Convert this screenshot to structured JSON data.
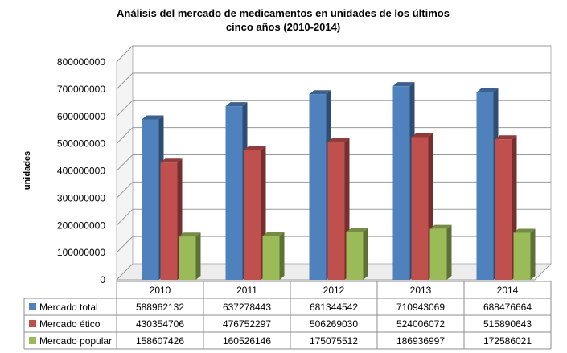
{
  "chart_data": {
    "type": "bar",
    "title_line1": "Análisis  del mercado de medicamentos en unidades de los últimos",
    "title_line2": "cinco años  (2010-2014)",
    "ylabel": "unidades",
    "xlabel": "",
    "ylim": [
      0,
      800000000
    ],
    "y_ticks": [
      "0",
      "100000000",
      "200000000",
      "300000000",
      "400000000",
      "500000000",
      "600000000",
      "700000000",
      "800000000"
    ],
    "grid": true,
    "three_d": true,
    "legend_placement": "data-table-left",
    "categories": [
      "2010",
      "2011",
      "2012",
      "2013",
      "2014"
    ],
    "series": [
      {
        "name": "Mercado total",
        "color": "#4F81BD",
        "values": [
          588962132,
          637278443,
          681344542,
          710943069,
          688476664
        ],
        "labels": [
          "588962132",
          "637278443",
          "681344542",
          "710943069",
          "688476664"
        ]
      },
      {
        "name": "Mercado ético",
        "color": "#C0504D",
        "values": [
          430354706,
          476752297,
          506269030,
          524006072,
          515890643
        ],
        "labels": [
          "430354706",
          "476752297",
          "506269030",
          "524006072",
          "515890643"
        ]
      },
      {
        "name": "Mercado popular",
        "color": "#9BBB59",
        "values": [
          158607426,
          160526146,
          175075512,
          186936997,
          172586021
        ],
        "labels": [
          "158607426",
          "160526146",
          "175075512",
          "186936997",
          "172586021"
        ]
      }
    ]
  }
}
